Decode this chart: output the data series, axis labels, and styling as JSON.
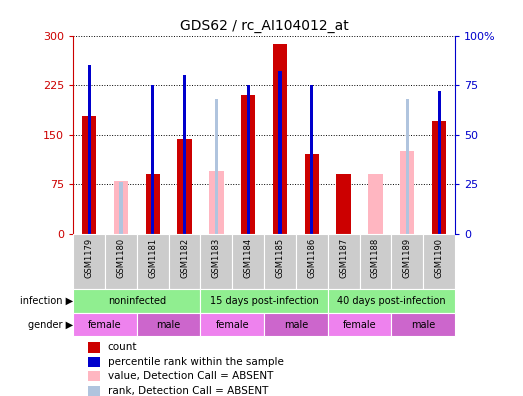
{
  "title": "GDS62 / rc_AI104012_at",
  "samples": [
    "GSM1179",
    "GSM1180",
    "GSM1181",
    "GSM1182",
    "GSM1183",
    "GSM1184",
    "GSM1185",
    "GSM1186",
    "GSM1187",
    "GSM1188",
    "GSM1189",
    "GSM1190"
  ],
  "count_values": [
    178,
    0,
    90,
    144,
    0,
    210,
    288,
    120,
    90,
    0,
    0,
    170
  ],
  "count_absent": [
    0,
    80,
    0,
    0,
    95,
    0,
    0,
    0,
    0,
    90,
    125,
    0
  ],
  "rank_present": [
    85,
    0,
    75,
    80,
    0,
    75,
    82,
    75,
    0,
    0,
    0,
    72
  ],
  "rank_absent": [
    0,
    26,
    0,
    0,
    68,
    0,
    0,
    0,
    0,
    0,
    68,
    0
  ],
  "ylim_left": [
    0,
    300
  ],
  "ylim_right": [
    0,
    100
  ],
  "yticks_left": [
    0,
    75,
    150,
    225,
    300
  ],
  "yticks_right": [
    0,
    25,
    50,
    75,
    100
  ],
  "ytick_labels_left": [
    "0",
    "75",
    "150",
    "225",
    "300"
  ],
  "ytick_labels_right": [
    "0",
    "25",
    "50",
    "75",
    "100%"
  ],
  "count_color": "#CC0000",
  "rank_color": "#0000CC",
  "count_absent_color": "#FFB6C1",
  "rank_absent_color": "#B0C4DE",
  "infection_labels": [
    "noninfected",
    "15 days post-infection",
    "40 days post-infection"
  ],
  "infection_ranges": [
    [
      0,
      4
    ],
    [
      4,
      8
    ],
    [
      8,
      12
    ]
  ],
  "infection_color": "#90EE90",
  "gender_data": [
    [
      "female",
      0,
      2,
      "#EE82EE"
    ],
    [
      "male",
      2,
      4,
      "#CC66CC"
    ],
    [
      "female",
      4,
      6,
      "#EE82EE"
    ],
    [
      "male",
      6,
      8,
      "#CC66CC"
    ],
    [
      "female",
      8,
      10,
      "#EE82EE"
    ],
    [
      "male",
      10,
      12,
      "#CC66CC"
    ]
  ],
  "background_color": "#FFFFFF",
  "title_fontsize": 10,
  "left_tick_color": "#CC0000",
  "right_tick_color": "#0000CC",
  "sample_box_color": "#CCCCCC"
}
